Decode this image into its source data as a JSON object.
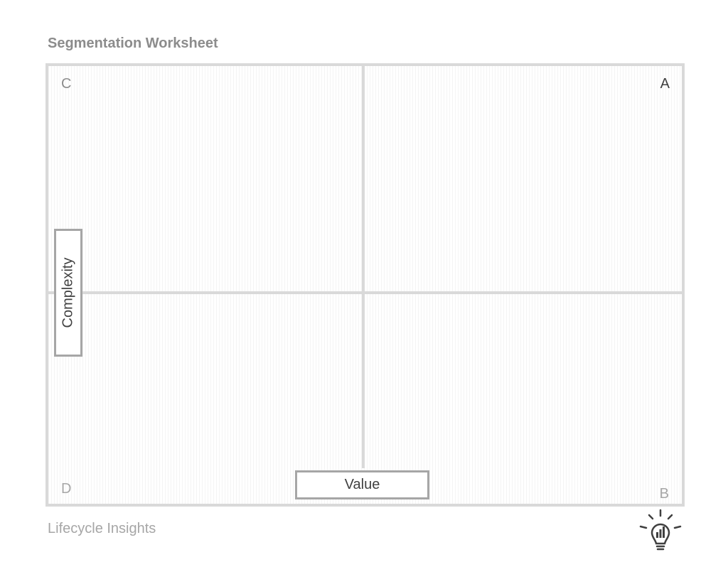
{
  "header": {
    "title": "Segmentation Worksheet"
  },
  "matrix": {
    "quadrant_labels": {
      "top_left": "C",
      "top_right": "A",
      "bottom_left": "D",
      "bottom_right": "B"
    },
    "y_axis_label": "Complexity",
    "x_axis_label": "Value"
  },
  "footer": {
    "brand": "Lifecycle Insights",
    "logo_icon": "lightbulb-bar-chart-icon"
  },
  "colors": {
    "title": "#8c8c8c",
    "grid_lines": "#d9d9d9",
    "label_border": "#a6a6a6",
    "label_text": "#404040",
    "footer_text": "#a6a6a6"
  }
}
